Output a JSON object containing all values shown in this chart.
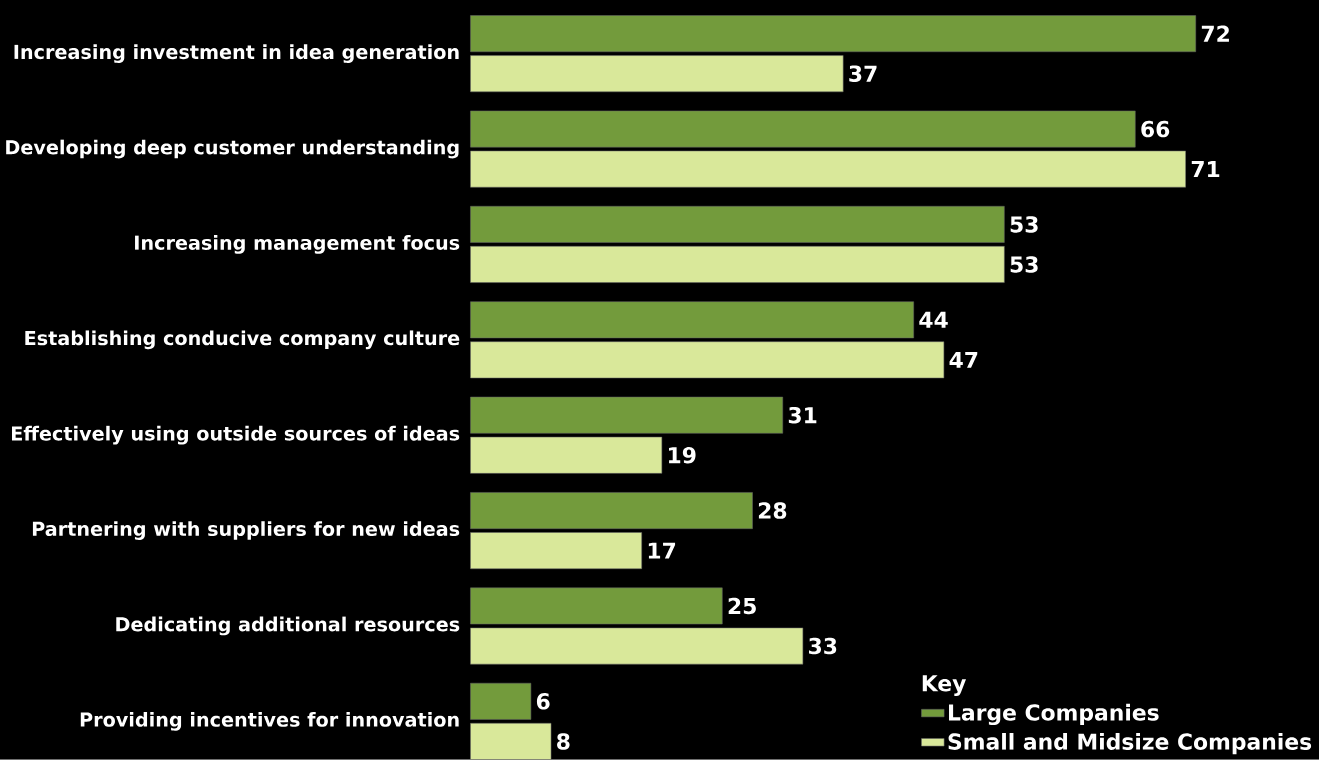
{
  "chart_data": {
    "type": "bar",
    "orientation": "horizontal",
    "categories": [
      "Increasing investment in idea generation",
      "Developing deep customer understanding",
      "Increasing management focus",
      "Establishing conducive company culture",
      "Effectively using outside sources of ideas",
      "Partnering with suppliers for new ideas",
      "Dedicating additional resources",
      "Providing incentives for innovation"
    ],
    "series": [
      {
        "name": "Large Companies",
        "color": "#739b3c",
        "values": [
          72,
          66,
          53,
          44,
          31,
          28,
          25,
          6
        ]
      },
      {
        "name": "Small and Midsize Companies",
        "color": "#d9e89a",
        "values": [
          37,
          71,
          53,
          47,
          19,
          17,
          33,
          8
        ]
      }
    ],
    "data_labels": true,
    "legend": "bottom right",
    "legend_title": "Key"
  }
}
